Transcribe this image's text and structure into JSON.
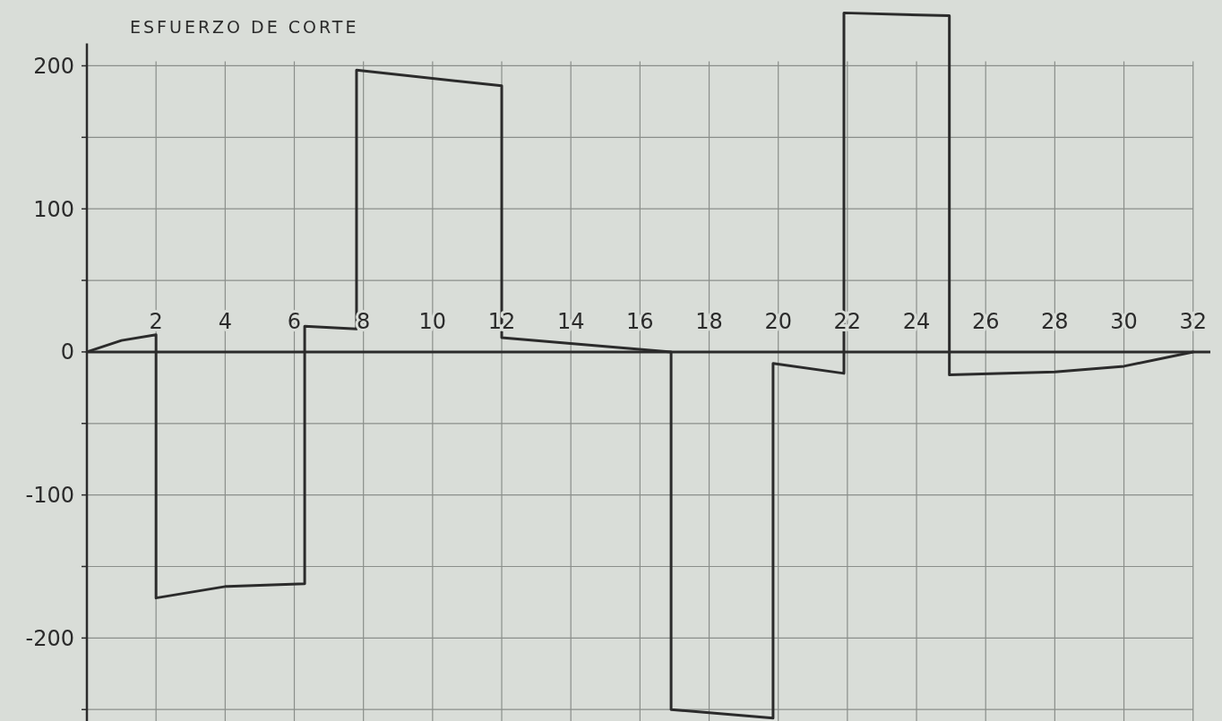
{
  "chart_data": {
    "type": "line",
    "title": "ESFUERZO DE CORTE",
    "x": [
      0,
      1,
      2,
      2,
      4,
      6.3,
      6.3,
      7.8,
      7.8,
      12,
      12,
      16.9,
      16.9,
      19.85,
      19.85,
      21.9,
      21.9,
      24.95,
      24.95,
      28,
      30,
      32
    ],
    "values": [
      0,
      8,
      12,
      -172,
      -164,
      -162,
      18,
      16,
      197,
      186,
      10,
      0,
      -250,
      -256,
      -8,
      -15,
      237,
      235,
      -16,
      -14,
      -10,
      0
    ],
    "color": "#2b2b2b",
    "xlim": [
      0,
      32.5
    ],
    "ylim": [
      -258,
      246
    ],
    "xticks": [
      2,
      4,
      6,
      8,
      10,
      12,
      14,
      16,
      18,
      20,
      22,
      24,
      26,
      28,
      30,
      32
    ],
    "yticks": [
      {
        "value": -250,
        "label": null
      },
      -200,
      {
        "value": -150,
        "label": null
      },
      -100,
      {
        "value": -50,
        "label": null
      },
      0,
      {
        "value": 50,
        "label": null
      },
      100,
      {
        "value": 150,
        "label": null
      },
      200
    ],
    "grid": true,
    "marker": "none",
    "line_style": "solid"
  }
}
